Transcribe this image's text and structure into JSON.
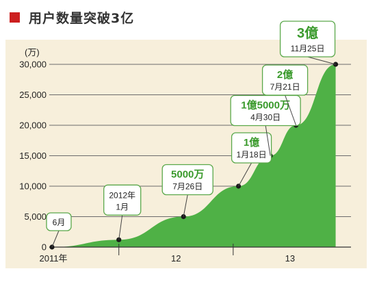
{
  "header": {
    "title": "用户数量突破3亿",
    "marker_color": "#cc1f1f"
  },
  "chart_data": {
    "type": "area",
    "title": "用户数量突破3亿",
    "ylabel": "(万)",
    "xlabel": "",
    "ylim": [
      0,
      30000
    ],
    "yticks": [
      {
        "value": 0,
        "label": "0"
      },
      {
        "value": 5000,
        "label": "5,000"
      },
      {
        "value": 10000,
        "label": "10,000"
      },
      {
        "value": 15000,
        "label": "15,000"
      },
      {
        "value": 20000,
        "label": "20,000"
      },
      {
        "value": 25000,
        "label": "25,000"
      },
      {
        "value": 30000,
        "label": "30,000"
      }
    ],
    "xlim": [
      "2011-06-01",
      "2013-12-31"
    ],
    "xticks": [
      {
        "date": "2011-06-01",
        "label": "2011年"
      },
      {
        "date": "2012-01-01",
        "label": "12"
      },
      {
        "date": "2013-01-01",
        "label": "13"
      }
    ],
    "area_color": "#4fb146",
    "background_color": "#f7efdb",
    "points": [
      {
        "date": "2011-06-01",
        "value": 0,
        "lines": [
          "6月"
        ],
        "emphasis": false
      },
      {
        "date": "2012-01-01",
        "value": 1200,
        "lines": [
          "2012年",
          "1月"
        ],
        "emphasis": false
      },
      {
        "date": "2012-07-26",
        "value": 5000,
        "lines": [
          "5000万",
          "7月26日"
        ],
        "emphasis": true
      },
      {
        "date": "2013-01-18",
        "value": 10000,
        "lines": [
          "1億",
          "1月18日"
        ],
        "emphasis": true
      },
      {
        "date": "2013-04-30",
        "value": 15000,
        "lines": [
          "1億5000万",
          "4月30日"
        ],
        "emphasis": true
      },
      {
        "date": "2013-07-21",
        "value": 20000,
        "lines": [
          "2億",
          "7月21日"
        ],
        "emphasis": true
      },
      {
        "date": "2013-11-25",
        "value": 30000,
        "lines": [
          "3億",
          "11月25日"
        ],
        "emphasis": true
      }
    ]
  }
}
